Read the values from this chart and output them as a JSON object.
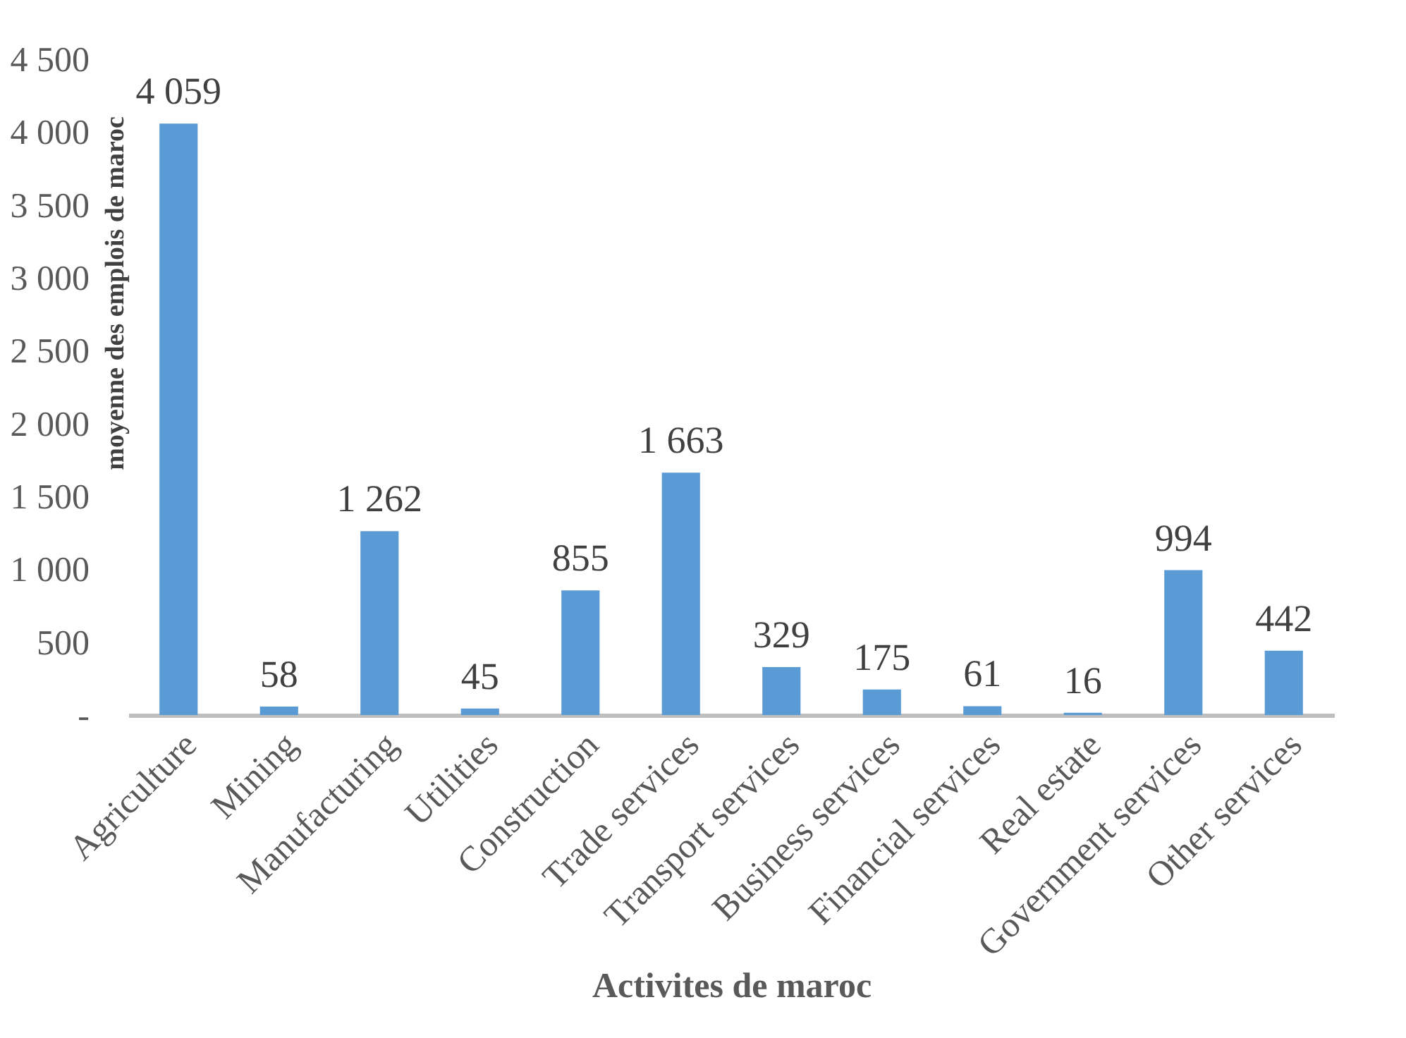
{
  "chart_data": {
    "type": "bar",
    "xlabel": "Activites de maroc",
    "ylabel": "moyenne des emplois de maroc",
    "categories": [
      "Agriculture",
      "Mining",
      "Manufacturing",
      "Utilities",
      "Construction",
      "Trade services",
      "Transport services",
      "Business services",
      "Financial services",
      "Real estate",
      "Government services",
      "Other services"
    ],
    "values": [
      4059,
      58,
      1262,
      45,
      855,
      1663,
      329,
      175,
      61,
      16,
      994,
      442
    ],
    "value_labels": [
      "4 059",
      "58",
      "1 262",
      "45",
      "855",
      "1 663",
      "329",
      "175",
      "61",
      "16",
      "994",
      "442"
    ],
    "color": "#5b9bd5",
    "ylim": [
      0,
      4500
    ],
    "yticks": [
      {
        "value": 0,
        "label": "-"
      },
      {
        "value": 500,
        "label": "500"
      },
      {
        "value": 1000,
        "label": "1 000"
      },
      {
        "value": 1500,
        "label": "1 500"
      },
      {
        "value": 2000,
        "label": "2 000"
      },
      {
        "value": 2500,
        "label": "2 500"
      },
      {
        "value": 3000,
        "label": "3 000"
      },
      {
        "value": 3500,
        "label": "3 500"
      },
      {
        "value": 4000,
        "label": "4 000"
      },
      {
        "value": 4500,
        "label": "4 500"
      }
    ],
    "grid": false
  }
}
